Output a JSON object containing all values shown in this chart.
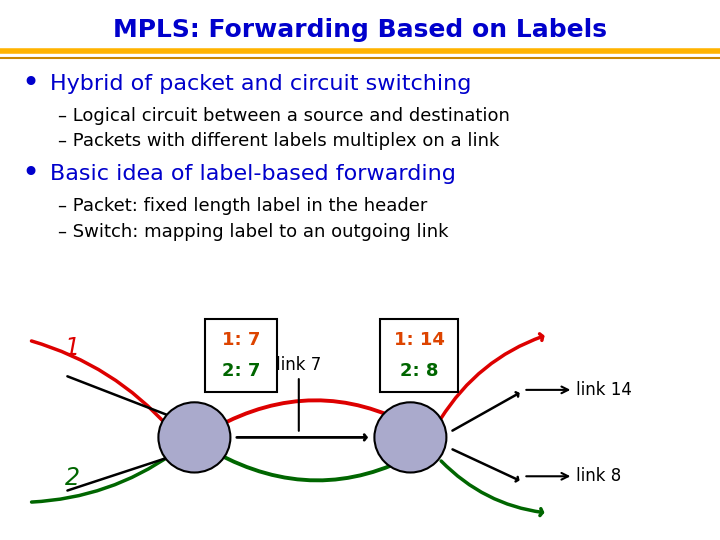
{
  "title": "MPLS: Forwarding Based on Labels",
  "title_color": "#0000CC",
  "title_fontsize": 18,
  "background_color": "#FFFFFF",
  "separator_color_top": "#FFB300",
  "separator_color_bottom": "#CC8800",
  "bullet1_text": "Hybrid of packet and circuit switching",
  "bullet1_color": "#0000CC",
  "sub1a": "– Logical circuit between a source and destination",
  "sub1b": "– Packets with different labels multiplex on a link",
  "bullet2_text": "Basic idea of label-based forwarding",
  "bullet2_color": "#0000CC",
  "sub2a": "– Packet: fixed length label in the header",
  "sub2b": "– Switch: mapping label to an outgoing link",
  "sub_color": "#000000",
  "red_line_color": "#DD0000",
  "green_line_color": "#006600",
  "node_color": "#AAAACC",
  "box_color1": "#DD4400",
  "box_color2": "#006600"
}
